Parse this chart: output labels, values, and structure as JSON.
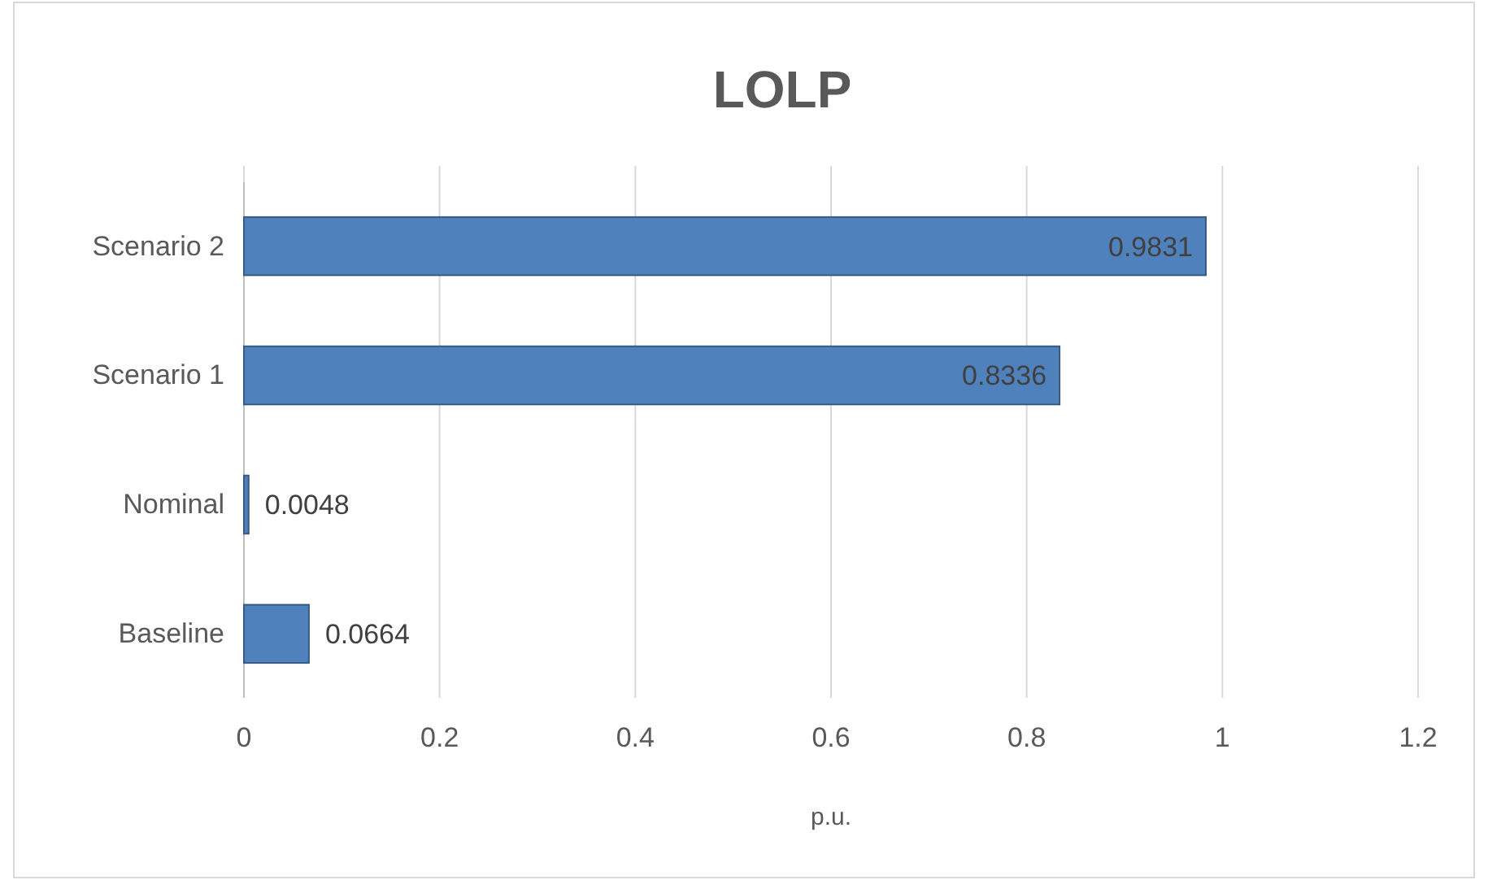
{
  "chart_data": {
    "type": "bar",
    "orientation": "horizontal",
    "title": "LOLP",
    "xlabel": "p.u.",
    "categories": [
      "Scenario 2",
      "Scenario 1",
      "Nominal",
      "Baseline"
    ],
    "values": [
      0.9831,
      0.8336,
      0.0048,
      0.0664
    ],
    "color": "#4f81bd",
    "xlim": [
      0,
      1.2
    ],
    "xticks": [
      0,
      0.2,
      0.4,
      0.6,
      0.8,
      1,
      1.2
    ],
    "grid": "x",
    "data_labels": true
  }
}
